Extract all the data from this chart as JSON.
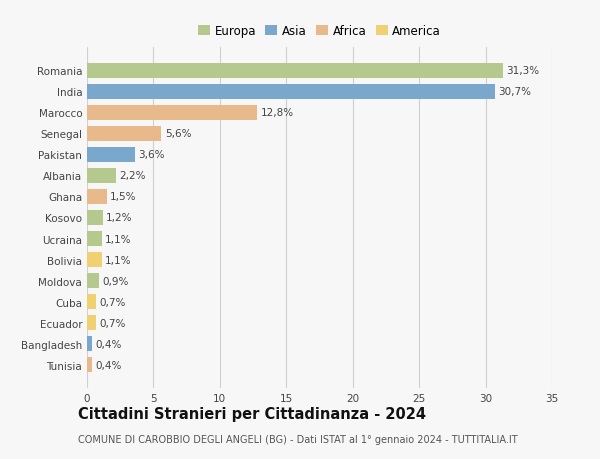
{
  "countries": [
    "Romania",
    "India",
    "Marocco",
    "Senegal",
    "Pakistan",
    "Albania",
    "Ghana",
    "Kosovo",
    "Ucraina",
    "Bolivia",
    "Moldova",
    "Cuba",
    "Ecuador",
    "Bangladesh",
    "Tunisia"
  ],
  "values": [
    31.3,
    30.7,
    12.8,
    5.6,
    3.6,
    2.2,
    1.5,
    1.2,
    1.1,
    1.1,
    0.9,
    0.7,
    0.7,
    0.4,
    0.4
  ],
  "labels": [
    "31,3%",
    "30,7%",
    "12,8%",
    "5,6%",
    "3,6%",
    "2,2%",
    "1,5%",
    "1,2%",
    "1,1%",
    "1,1%",
    "0,9%",
    "0,7%",
    "0,7%",
    "0,4%",
    "0,4%"
  ],
  "continents": [
    "Europa",
    "Asia",
    "Africa",
    "Africa",
    "Asia",
    "Europa",
    "Africa",
    "Europa",
    "Europa",
    "America",
    "Europa",
    "America",
    "America",
    "Asia",
    "Africa"
  ],
  "continent_colors": {
    "Europa": "#b5c98e",
    "Asia": "#7aa8cc",
    "Africa": "#e8b98a",
    "America": "#f0d070"
  },
  "legend_order": [
    "Europa",
    "Asia",
    "Africa",
    "America"
  ],
  "title": "Cittadini Stranieri per Cittadinanza - 2024",
  "subtitle": "COMUNE DI CAROBBIO DEGLI ANGELI (BG) - Dati ISTAT al 1° gennaio 2024 - TUTTITALIA.IT",
  "xlim": [
    0,
    35
  ],
  "xticks": [
    0,
    5,
    10,
    15,
    20,
    25,
    30,
    35
  ],
  "background_color": "#f7f7f7",
  "grid_color": "#d0d0d0",
  "bar_height": 0.72,
  "label_fontsize": 7.5,
  "tick_fontsize": 7.5,
  "title_fontsize": 10.5,
  "subtitle_fontsize": 7.0,
  "legend_fontsize": 8.5
}
